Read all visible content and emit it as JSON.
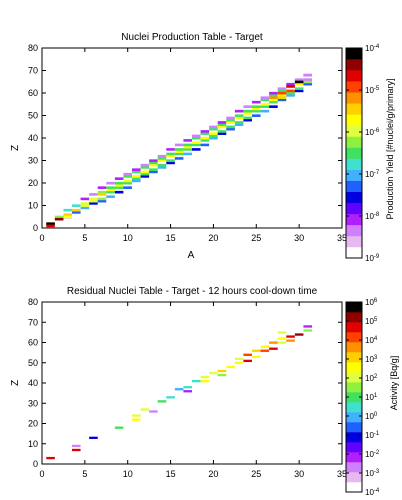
{
  "chart_data": [
    {
      "type": "heatmap",
      "title": "Nuclei Production Table - Target",
      "xlabel": "A",
      "ylabel": "Z",
      "xlim": [
        0,
        35
      ],
      "ylim": [
        0,
        80
      ],
      "x_ticks": [
        "0",
        "5",
        "10",
        "15",
        "20",
        "25",
        "30",
        "35"
      ],
      "y_ticks": [
        "0",
        "10",
        "20",
        "30",
        "40",
        "50",
        "60",
        "70",
        "80"
      ],
      "colorbar": {
        "label": "Production Yield [#nuclei/g/primary]",
        "scale": "log",
        "range": [
          1e-09,
          0.0001
        ],
        "ticks": [
          "10-9",
          "10-8",
          "10-7",
          "10-6",
          "10-5",
          "10-4"
        ]
      },
      "palette": [
        "#ffffff",
        "#e8b8f0",
        "#d080ff",
        "#b020ff",
        "#6000ff",
        "#0000e0",
        "#2060ff",
        "#40b0ff",
        "#40e0d0",
        "#40e060",
        "#90f040",
        "#e0ff40",
        "#ffff00",
        "#ffd000",
        "#ff9000",
        "#ff4000",
        "#e00000",
        "#900000",
        "#000000"
      ],
      "band": {
        "z_per_a": 2.12,
        "cells_per_column": [
          1,
          2,
          3,
          3,
          4,
          4,
          5,
          5,
          5,
          5,
          5,
          5,
          5,
          5,
          5,
          5,
          5,
          5,
          5,
          5,
          5,
          5,
          5,
          5,
          5,
          5,
          5,
          5,
          5,
          5,
          4
        ],
        "a_start": 1
      },
      "points": [
        {
          "a": 1,
          "z": 2,
          "c": 18
        },
        {
          "a": 1,
          "z": 1,
          "c": 16
        },
        {
          "a": 2,
          "z": 4,
          "c": 17
        },
        {
          "a": 3,
          "z": 5,
          "c": 12
        },
        {
          "a": 30,
          "z": 65,
          "c": 18
        },
        {
          "a": 29,
          "z": 63,
          "c": 16
        },
        {
          "a": 29,
          "z": 61,
          "c": 15
        },
        {
          "a": 28,
          "z": 60,
          "c": 15
        },
        {
          "a": 27,
          "z": 58,
          "c": 14
        },
        {
          "a": 28,
          "z": 58,
          "c": 13
        },
        {
          "a": 31,
          "z": 66,
          "c": 2
        },
        {
          "a": 31,
          "z": 68,
          "c": 2
        }
      ]
    },
    {
      "type": "heatmap",
      "title": "Residual Nuclei Table - Target - 12 hours cool-down time",
      "xlabel": "A",
      "ylabel": "Z",
      "xlim": [
        0,
        35
      ],
      "ylim": [
        0,
        80
      ],
      "x_ticks": [
        "0",
        "5",
        "10",
        "15",
        "20",
        "25",
        "30",
        "35"
      ],
      "y_ticks": [
        "0",
        "10",
        "20",
        "30",
        "40",
        "50",
        "60",
        "70",
        "80"
      ],
      "colorbar": {
        "label": "Activity [Bq/g]",
        "scale": "log",
        "range": [
          0.0001,
          1000000.0
        ],
        "ticks": [
          "10-4",
          "10-3",
          "10-2",
          "10-1",
          "100",
          "101",
          "102",
          "103",
          "104",
          "105",
          "106"
        ]
      },
      "palette": [
        "#ffffff",
        "#e8b8f0",
        "#d080ff",
        "#b020ff",
        "#6000ff",
        "#0000e0",
        "#2060ff",
        "#40b0ff",
        "#40e0d0",
        "#40e060",
        "#90f040",
        "#e0ff40",
        "#ffff00",
        "#ffd000",
        "#ff9000",
        "#ff4000",
        "#e00000",
        "#900000",
        "#000000"
      ],
      "points": [
        {
          "a": 1,
          "z": 3,
          "c": 16
        },
        {
          "a": 4,
          "z": 7,
          "c": 16
        },
        {
          "a": 4,
          "z": 9,
          "c": 2
        },
        {
          "a": 6,
          "z": 13,
          "c": 5
        },
        {
          "a": 9,
          "z": 18,
          "c": 9
        },
        {
          "a": 11,
          "z": 22,
          "c": 12
        },
        {
          "a": 11,
          "z": 24,
          "c": 11
        },
        {
          "a": 12,
          "z": 27,
          "c": 11
        },
        {
          "a": 13,
          "z": 26,
          "c": 2
        },
        {
          "a": 14,
          "z": 31,
          "c": 9
        },
        {
          "a": 15,
          "z": 33,
          "c": 8
        },
        {
          "a": 16,
          "z": 37,
          "c": 7
        },
        {
          "a": 17,
          "z": 36,
          "c": 3
        },
        {
          "a": 17,
          "z": 38,
          "c": 8
        },
        {
          "a": 18,
          "z": 41,
          "c": 8
        },
        {
          "a": 19,
          "z": 41,
          "c": 12
        },
        {
          "a": 19,
          "z": 43,
          "c": 11
        },
        {
          "a": 20,
          "z": 45,
          "c": 11
        },
        {
          "a": 21,
          "z": 44,
          "c": 10
        },
        {
          "a": 21,
          "z": 46,
          "c": 13
        },
        {
          "a": 22,
          "z": 48,
          "c": 12
        },
        {
          "a": 23,
          "z": 50,
          "c": 12
        },
        {
          "a": 23,
          "z": 52,
          "c": 11
        },
        {
          "a": 24,
          "z": 51,
          "c": 16
        },
        {
          "a": 24,
          "z": 54,
          "c": 15
        },
        {
          "a": 25,
          "z": 53,
          "c": 12
        },
        {
          "a": 25,
          "z": 56,
          "c": 13
        },
        {
          "a": 26,
          "z": 56,
          "c": 15
        },
        {
          "a": 26,
          "z": 58,
          "c": 12
        },
        {
          "a": 27,
          "z": 57,
          "c": 16
        },
        {
          "a": 27,
          "z": 60,
          "c": 14
        },
        {
          "a": 28,
          "z": 60,
          "c": 11
        },
        {
          "a": 28,
          "z": 62,
          "c": 12
        },
        {
          "a": 28,
          "z": 65,
          "c": 11
        },
        {
          "a": 29,
          "z": 61,
          "c": 14
        },
        {
          "a": 29,
          "z": 63,
          "c": 16
        },
        {
          "a": 30,
          "z": 64,
          "c": 17
        },
        {
          "a": 31,
          "z": 66,
          "c": 10
        },
        {
          "a": 31,
          "z": 68,
          "c": 3
        }
      ]
    }
  ]
}
